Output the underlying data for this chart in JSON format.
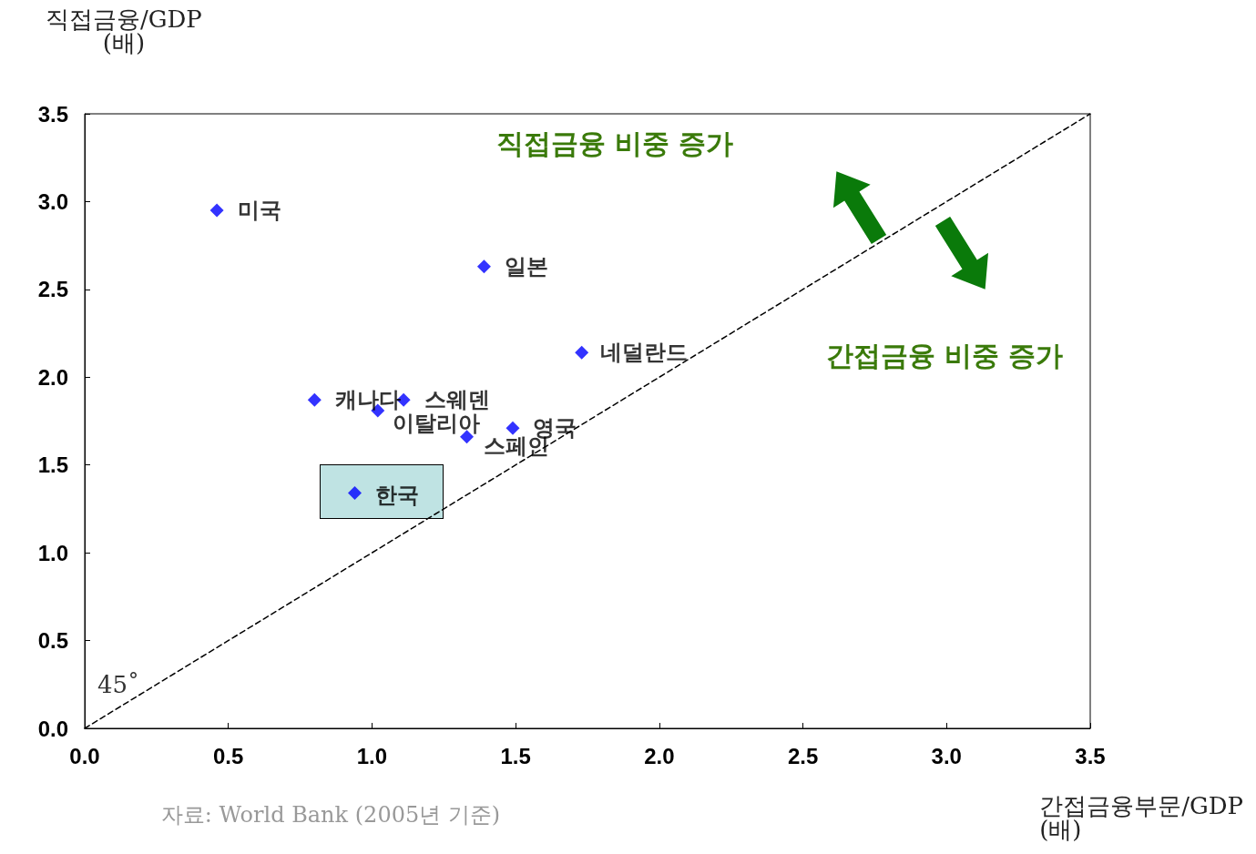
{
  "chart_data": {
    "type": "scatter",
    "xlabel": "간접금융부문/GDP\n(배)",
    "ylabel": "직접금융/GDP\n(배)",
    "xlim": [
      0,
      3.5
    ],
    "xticks": [
      {
        "value": 0,
        "label": "0.0"
      },
      {
        "value": 0.5,
        "label": "0.5"
      },
      {
        "value": 1,
        "label": "1.0"
      },
      {
        "value": 1.5,
        "label": "1.5"
      },
      {
        "value": 2,
        "label": "2.0"
      },
      {
        "value": 2.5,
        "label": "2.5"
      },
      {
        "value": 3,
        "label": "3.0"
      },
      {
        "value": 3.5,
        "label": "3.5"
      }
    ],
    "ylim": [
      0,
      3.5
    ],
    "yticks": [
      {
        "value": 0,
        "label": "0.0"
      },
      {
        "value": 0.5,
        "label": "0.5"
      },
      {
        "value": 1,
        "label": "1.0"
      },
      {
        "value": 1.5,
        "label": "1.5"
      },
      {
        "value": 2,
        "label": "2.0"
      },
      {
        "value": 2.5,
        "label": "2.5"
      },
      {
        "value": 3,
        "label": "3.0"
      },
      {
        "value": 3.5,
        "label": "3.5"
      }
    ],
    "marker": "diamond",
    "grid": false,
    "legend": false,
    "series": [
      {
        "name": "미국",
        "color": "#0000ff",
        "x": [
          0.46
        ],
        "values": [
          2.95
        ]
      },
      {
        "name": "일본",
        "color": "#0000ff",
        "x": [
          1.39
        ],
        "values": [
          2.63
        ]
      },
      {
        "name": "네덜란드",
        "color": "#0000ff",
        "x": [
          1.73
        ],
        "values": [
          2.14
        ]
      },
      {
        "name": "캐나다",
        "color": "#0000ff",
        "x": [
          0.8
        ],
        "values": [
          1.87
        ]
      },
      {
        "name": "스웨덴",
        "color": "#0000ff",
        "x": [
          1.11
        ],
        "values": [
          1.87
        ]
      },
      {
        "name": "이탈리아",
        "color": "#0000ff",
        "x": [
          1.02
        ],
        "values": [
          1.81
        ]
      },
      {
        "name": "영국",
        "color": "#0000ff",
        "x": [
          1.49
        ],
        "values": [
          1.71
        ]
      },
      {
        "name": "스페인",
        "color": "#0000ff",
        "x": [
          1.33
        ],
        "values": [
          1.66
        ]
      },
      {
        "name": "한국",
        "color": "#0000ff",
        "x": [
          0.94
        ],
        "values": [
          1.34
        ]
      },
      {
        "type": "line",
        "color": "#000000",
        "line_style": "dashed",
        "marker": "none",
        "x": [
          0,
          3.5
        ],
        "values": [
          0,
          3.5
        ]
      }
    ],
    "annotations": [
      "직접금융 비중 증가",
      "간접금융 비중 증가",
      "자료: World Bank (2005년 기준)",
      "45˚"
    ]
  }
}
